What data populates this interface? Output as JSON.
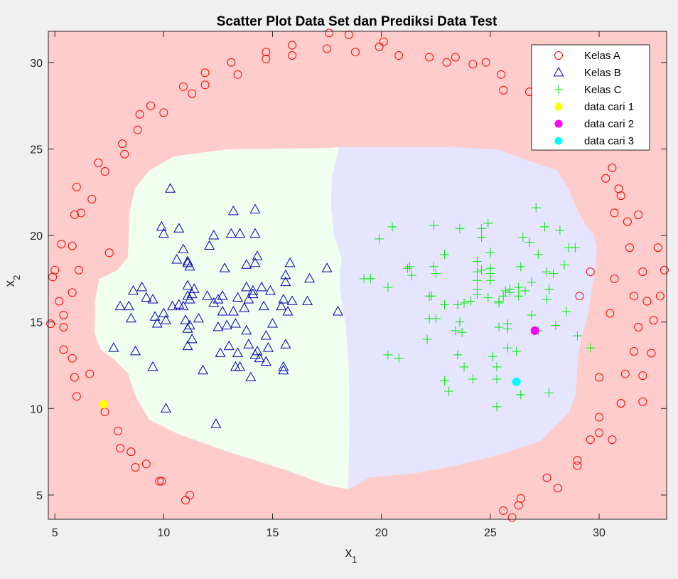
{
  "chart_data": {
    "type": "scatter",
    "title": "Scatter Plot Data Set dan Prediksi Data Test",
    "xlabel": "x",
    "xlabel_sub": "1",
    "ylabel": "x",
    "ylabel_sub": "2",
    "xlim": [
      4.7,
      33.1
    ],
    "ylim": [
      3.6,
      31.8
    ],
    "xticks": [
      5,
      10,
      15,
      20,
      25,
      30
    ],
    "yticks": [
      5,
      10,
      15,
      20,
      25,
      30
    ],
    "grid": false,
    "legend_position": "top-right",
    "background_regions": [
      {
        "class": "Kelas A",
        "color": "#ffcccc"
      },
      {
        "class": "Kelas B",
        "color": "#f0fff0"
      },
      {
        "class": "Kelas C",
        "color": "#e5e5ff"
      }
    ],
    "series": [
      {
        "name": "Kelas A",
        "marker": "circle",
        "color": "#ff0000",
        "points": [
          [
            4.8,
            14.9
          ],
          [
            4.9,
            17.6
          ],
          [
            5.0,
            18.0
          ],
          [
            5.2,
            16.2
          ],
          [
            5.3,
            19.5
          ],
          [
            5.4,
            15.4
          ],
          [
            5.4,
            14.7
          ],
          [
            5.4,
            13.4
          ],
          [
            5.8,
            12.9
          ],
          [
            5.8,
            16.7
          ],
          [
            5.8,
            19.4
          ],
          [
            5.9,
            21.2
          ],
          [
            5.9,
            11.8
          ],
          [
            6.0,
            10.7
          ],
          [
            6.0,
            22.8
          ],
          [
            6.1,
            18.0
          ],
          [
            6.2,
            21.3
          ],
          [
            6.6,
            12.0
          ],
          [
            6.7,
            22.1
          ],
          [
            7.0,
            24.2
          ],
          [
            7.3,
            23.7
          ],
          [
            7.3,
            9.8
          ],
          [
            7.5,
            19.0
          ],
          [
            7.9,
            8.7
          ],
          [
            8.0,
            7.7
          ],
          [
            8.1,
            25.3
          ],
          [
            8.2,
            24.7
          ],
          [
            8.5,
            7.5
          ],
          [
            8.7,
            6.6
          ],
          [
            8.8,
            26.1
          ],
          [
            8.9,
            27.0
          ],
          [
            9.2,
            6.8
          ],
          [
            9.4,
            27.5
          ],
          [
            9.8,
            5.8
          ],
          [
            9.9,
            5.8
          ],
          [
            10.0,
            27.1
          ],
          [
            10.9,
            28.6
          ],
          [
            11.0,
            4.7
          ],
          [
            11.2,
            5.0
          ],
          [
            11.3,
            28.2
          ],
          [
            11.9,
            29.4
          ],
          [
            11.9,
            28.7
          ],
          [
            13.1,
            30.0
          ],
          [
            13.4,
            29.3
          ],
          [
            14.7,
            30.6
          ],
          [
            14.7,
            30.2
          ],
          [
            15.9,
            31.0
          ],
          [
            15.9,
            30.4
          ],
          [
            17.5,
            30.8
          ],
          [
            17.6,
            31.7
          ],
          [
            18.5,
            31.6
          ],
          [
            18.8,
            30.6
          ],
          [
            19.9,
            30.9
          ],
          [
            20.1,
            31.2
          ],
          [
            20.8,
            30.4
          ],
          [
            22.2,
            30.3
          ],
          [
            23.0,
            30.0
          ],
          [
            23.4,
            30.3
          ],
          [
            24.2,
            29.9
          ],
          [
            24.8,
            30.0
          ],
          [
            25.5,
            29.3
          ],
          [
            25.6,
            28.4
          ],
          [
            25.6,
            4.1
          ],
          [
            26.0,
            3.7
          ],
          [
            26.3,
            4.4
          ],
          [
            26.4,
            4.8
          ],
          [
            26.8,
            28.3
          ],
          [
            27.1,
            28.7
          ],
          [
            27.6,
            6.0
          ],
          [
            28.1,
            5.4
          ],
          [
            29.0,
            7.0
          ],
          [
            29.0,
            6.7
          ],
          [
            29.1,
            16.5
          ],
          [
            29.6,
            17.9
          ],
          [
            29.6,
            8.2
          ],
          [
            30.0,
            9.5
          ],
          [
            30.0,
            11.8
          ],
          [
            30.0,
            8.6
          ],
          [
            30.3,
            23.3
          ],
          [
            30.5,
            15.5
          ],
          [
            30.6,
            23.9
          ],
          [
            30.6,
            8.2
          ],
          [
            30.7,
            21.3
          ],
          [
            30.7,
            17.5
          ],
          [
            30.9,
            22.7
          ],
          [
            31.0,
            22.3
          ],
          [
            31.0,
            10.3
          ],
          [
            31.2,
            12.0
          ],
          [
            31.3,
            20.8
          ],
          [
            31.4,
            19.3
          ],
          [
            31.6,
            16.5
          ],
          [
            31.6,
            13.3
          ],
          [
            31.8,
            14.7
          ],
          [
            31.8,
            21.2
          ],
          [
            32.0,
            17.9
          ],
          [
            32.0,
            10.4
          ],
          [
            32.0,
            11.9
          ],
          [
            32.2,
            16.2
          ],
          [
            32.4,
            13.2
          ],
          [
            32.5,
            15.1
          ],
          [
            32.7,
            19.3
          ],
          [
            32.8,
            16.5
          ],
          [
            33.0,
            18.0
          ]
        ]
      },
      {
        "name": "Kelas B",
        "marker": "triangle",
        "color": "#0000b4",
        "points": [
          [
            7.7,
            13.5
          ],
          [
            8.0,
            15.9
          ],
          [
            8.4,
            15.9
          ],
          [
            8.5,
            15.2
          ],
          [
            8.6,
            16.8
          ],
          [
            8.7,
            13.3
          ],
          [
            9.0,
            17.0
          ],
          [
            9.2,
            16.4
          ],
          [
            9.5,
            12.4
          ],
          [
            9.5,
            16.3
          ],
          [
            9.6,
            15.3
          ],
          [
            9.7,
            14.9
          ],
          [
            9.9,
            20.5
          ],
          [
            10.0,
            20.1
          ],
          [
            10.0,
            15.5
          ],
          [
            10.1,
            15.1
          ],
          [
            10.1,
            10.0
          ],
          [
            10.3,
            22.7
          ],
          [
            10.4,
            15.9
          ],
          [
            10.6,
            18.6
          ],
          [
            10.7,
            20.4
          ],
          [
            10.7,
            16.0
          ],
          [
            10.9,
            19.2
          ],
          [
            10.9,
            15.9
          ],
          [
            11.0,
            15.1
          ],
          [
            11.1,
            18.4
          ],
          [
            11.1,
            18.5
          ],
          [
            11.1,
            17.1
          ],
          [
            11.1,
            16.5
          ],
          [
            11.1,
            14.6
          ],
          [
            11.1,
            13.6
          ],
          [
            11.2,
            18.2
          ],
          [
            11.2,
            14.8
          ],
          [
            11.2,
            16.3
          ],
          [
            11.3,
            14.0
          ],
          [
            11.3,
            16.6
          ],
          [
            11.4,
            16.9
          ],
          [
            11.6,
            15.2
          ],
          [
            11.8,
            12.2
          ],
          [
            12.0,
            16.5
          ],
          [
            12.1,
            19.4
          ],
          [
            12.3,
            16.1
          ],
          [
            12.3,
            20.0
          ],
          [
            12.4,
            9.1
          ],
          [
            12.5,
            16.3
          ],
          [
            12.5,
            14.7
          ],
          [
            12.6,
            13.2
          ],
          [
            12.7,
            16.5
          ],
          [
            12.7,
            15.6
          ],
          [
            12.8,
            18.1
          ],
          [
            12.9,
            14.8
          ],
          [
            13.0,
            13.6
          ],
          [
            13.1,
            20.1
          ],
          [
            13.2,
            21.4
          ],
          [
            13.2,
            15.6
          ],
          [
            13.3,
            14.9
          ],
          [
            13.3,
            12.4
          ],
          [
            13.4,
            13.2
          ],
          [
            13.4,
            16.4
          ],
          [
            13.5,
            12.4
          ],
          [
            13.5,
            20.1
          ],
          [
            13.7,
            15.8
          ],
          [
            13.8,
            18.3
          ],
          [
            13.8,
            17.0
          ],
          [
            13.8,
            14.5
          ],
          [
            13.9,
            13.7
          ],
          [
            13.9,
            16.3
          ],
          [
            14.0,
            11.8
          ],
          [
            14.1,
            16.8
          ],
          [
            14.1,
            16.6
          ],
          [
            14.2,
            18.4
          ],
          [
            14.2,
            13.1
          ],
          [
            14.2,
            21.5
          ],
          [
            14.2,
            20.1
          ],
          [
            14.3,
            13.3
          ],
          [
            14.3,
            18.8
          ],
          [
            14.4,
            12.9
          ],
          [
            14.5,
            17.0
          ],
          [
            14.6,
            15.9
          ],
          [
            14.7,
            14.2
          ],
          [
            14.7,
            12.7
          ],
          [
            14.8,
            13.5
          ],
          [
            14.9,
            16.8
          ],
          [
            15.0,
            14.9
          ],
          [
            15.4,
            15.9
          ],
          [
            15.5,
            12.4
          ],
          [
            15.5,
            12.2
          ],
          [
            15.5,
            16.3
          ],
          [
            15.6,
            17.7
          ],
          [
            15.6,
            13.7
          ],
          [
            15.6,
            17.3
          ],
          [
            15.7,
            15.6
          ],
          [
            15.8,
            18.4
          ],
          [
            15.9,
            16.2
          ],
          [
            16.6,
            16.2
          ],
          [
            16.7,
            17.5
          ],
          [
            17.5,
            18.1
          ],
          [
            18.0,
            15.6
          ]
        ]
      },
      {
        "name": "Kelas C",
        "marker": "plus",
        "color": "#00ee00",
        "points": [
          [
            19.2,
            17.5
          ],
          [
            19.5,
            17.5
          ],
          [
            19.9,
            19.8
          ],
          [
            20.3,
            17.0
          ],
          [
            20.3,
            13.1
          ],
          [
            20.5,
            20.5
          ],
          [
            20.8,
            12.9
          ],
          [
            21.2,
            18.1
          ],
          [
            21.3,
            18.2
          ],
          [
            21.4,
            17.7
          ],
          [
            22.1,
            14.0
          ],
          [
            22.2,
            16.5
          ],
          [
            22.2,
            15.2
          ],
          [
            22.3,
            16.5
          ],
          [
            22.4,
            20.6
          ],
          [
            22.4,
            18.2
          ],
          [
            22.5,
            15.2
          ],
          [
            22.5,
            17.8
          ],
          [
            22.9,
            16.0
          ],
          [
            22.9,
            18.9
          ],
          [
            22.9,
            11.6
          ],
          [
            23.1,
            11.0
          ],
          [
            23.4,
            14.5
          ],
          [
            23.5,
            13.1
          ],
          [
            23.5,
            16.0
          ],
          [
            23.6,
            20.4
          ],
          [
            23.6,
            15.0
          ],
          [
            23.7,
            14.4
          ],
          [
            23.8,
            12.4
          ],
          [
            23.8,
            16.1
          ],
          [
            24.1,
            16.2
          ],
          [
            24.2,
            11.7
          ],
          [
            24.4,
            16.6
          ],
          [
            24.4,
            16.9
          ],
          [
            24.4,
            17.4
          ],
          [
            24.4,
            17.9
          ],
          [
            24.4,
            18.5
          ],
          [
            24.6,
            18.0
          ],
          [
            24.6,
            19.9
          ],
          [
            24.6,
            20.4
          ],
          [
            24.9,
            20.7
          ],
          [
            24.9,
            16.4
          ],
          [
            25.0,
            19.0
          ],
          [
            25.0,
            18.1
          ],
          [
            25.0,
            17.8
          ],
          [
            25.0,
            17.4
          ],
          [
            25.1,
            13.0
          ],
          [
            25.3,
            11.7
          ],
          [
            25.3,
            12.4
          ],
          [
            25.3,
            10.1
          ],
          [
            25.4,
            14.7
          ],
          [
            25.4,
            16.2
          ],
          [
            25.4,
            16.1
          ],
          [
            25.6,
            16.5
          ],
          [
            25.7,
            16.8
          ],
          [
            25.8,
            14.6
          ],
          [
            25.8,
            13.5
          ],
          [
            25.8,
            14.9
          ],
          [
            25.9,
            16.9
          ],
          [
            25.9,
            16.7
          ],
          [
            26.2,
            13.3
          ],
          [
            26.3,
            16.5
          ],
          [
            26.3,
            17.0
          ],
          [
            26.4,
            10.8
          ],
          [
            26.4,
            18.2
          ],
          [
            26.5,
            19.9
          ],
          [
            26.6,
            16.8
          ],
          [
            26.8,
            19.6
          ],
          [
            26.9,
            15.4
          ],
          [
            26.9,
            17.3
          ],
          [
            27.1,
            21.6
          ],
          [
            27.2,
            18.9
          ],
          [
            27.2,
            14.5
          ],
          [
            27.5,
            20.5
          ],
          [
            27.6,
            17.9
          ],
          [
            27.6,
            16.3
          ],
          [
            27.7,
            16.9
          ],
          [
            27.7,
            10.9
          ],
          [
            27.9,
            17.8
          ],
          [
            28.0,
            14.8
          ],
          [
            28.2,
            20.3
          ],
          [
            28.4,
            18.3
          ],
          [
            28.5,
            15.6
          ],
          [
            28.6,
            19.3
          ],
          [
            28.9,
            19.3
          ],
          [
            29.0,
            14.2
          ],
          [
            29.6,
            13.5
          ]
        ]
      },
      {
        "name": "data cari 1",
        "marker": "filled-circle",
        "color": "#ffff00",
        "points": [
          [
            7.25,
            10.25
          ]
        ]
      },
      {
        "name": "data cari 2",
        "marker": "filled-circle",
        "color": "#ff00ff",
        "points": [
          [
            27.05,
            14.5
          ]
        ]
      },
      {
        "name": "data cari 3",
        "marker": "filled-circle",
        "color": "#00ffff",
        "points": [
          [
            26.2,
            11.55
          ]
        ]
      }
    ]
  }
}
